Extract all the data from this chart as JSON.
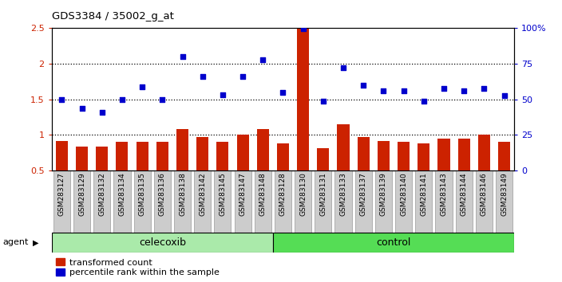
{
  "title": "GDS3384 / 35002_g_at",
  "samples": [
    "GSM283127",
    "GSM283129",
    "GSM283132",
    "GSM283134",
    "GSM283135",
    "GSM283136",
    "GSM283138",
    "GSM283142",
    "GSM283145",
    "GSM283147",
    "GSM283148",
    "GSM283128",
    "GSM283130",
    "GSM283131",
    "GSM283133",
    "GSM283137",
    "GSM283139",
    "GSM283140",
    "GSM283141",
    "GSM283143",
    "GSM283144",
    "GSM283146",
    "GSM283149"
  ],
  "bar_values": [
    0.92,
    0.84,
    0.84,
    0.9,
    0.9,
    0.9,
    1.08,
    0.97,
    0.9,
    1.0,
    1.08,
    0.88,
    2.49,
    0.82,
    1.15,
    0.97,
    0.92,
    0.9,
    0.88,
    0.95,
    0.95,
    1.0,
    0.9
  ],
  "scatter_values": [
    1.5,
    1.37,
    1.32,
    1.5,
    1.68,
    1.5,
    2.1,
    1.82,
    1.57,
    1.82,
    2.06,
    1.6,
    2.49,
    1.48,
    1.95,
    1.7,
    1.62,
    1.62,
    1.48,
    1.65,
    1.62,
    1.65,
    1.55
  ],
  "celecoxib_count": 11,
  "control_count": 12,
  "bar_color": "#cc2200",
  "scatter_color": "#0000cc",
  "celecoxib_color": "#aaeaaa",
  "control_color": "#55dd55",
  "ylim_left": [
    0.5,
    2.5
  ],
  "ylim_right": [
    0,
    100
  ],
  "yticks_left": [
    0.5,
    1.0,
    1.5,
    2.0,
    2.5
  ],
  "ytick_labels_left": [
    "0.5",
    "1",
    "1.5",
    "2",
    "2.5"
  ],
  "ytick_right_vals": [
    0,
    25,
    50,
    75,
    100
  ],
  "ytick_right_labels": [
    "0",
    "25",
    "50",
    "75",
    "100%"
  ],
  "hlines": [
    1.0,
    1.5,
    2.0
  ],
  "bg_color": "#ffffff",
  "tick_bg_color": "#cccccc",
  "group_label_cel": "celecoxib",
  "group_label_ctl": "control",
  "agent_label": "agent"
}
